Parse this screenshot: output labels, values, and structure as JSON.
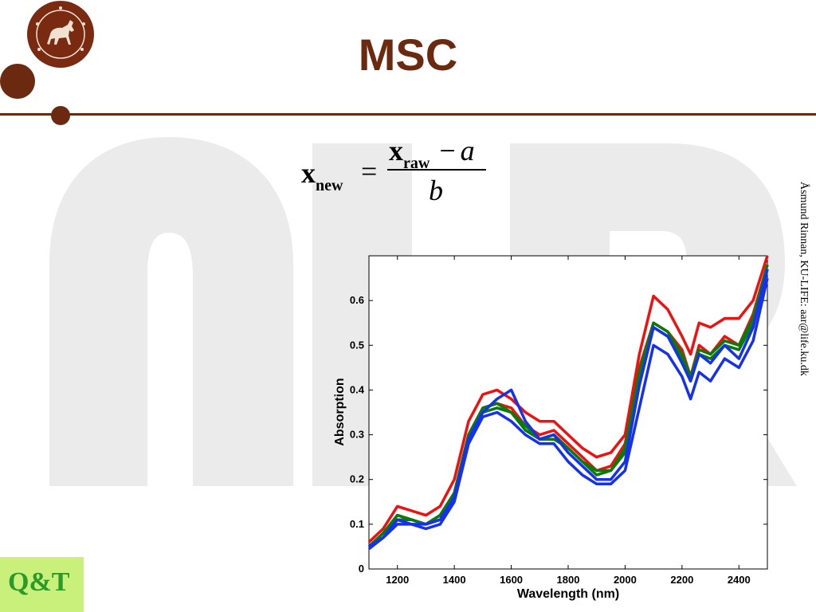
{
  "slide": {
    "title": "MSC",
    "credit": "Åsmund Rinnan, KU-LIFE: aar@life.ku.dk",
    "background_letters": "nIR",
    "formula": {
      "lhs": "x",
      "lhs_sub": "new",
      "equals": "=",
      "num_var": "x",
      "num_sub": "raw",
      "minus": "−",
      "a": "a",
      "denominator": "b"
    },
    "logo_bottom": "Q&T",
    "colors": {
      "brand": "#6b2a10",
      "logo_bg": "#c9f07a",
      "logo_text": "#2a9a2a"
    }
  },
  "chart_data": {
    "type": "line",
    "title": "",
    "xlabel": "Wavelength (nm)",
    "ylabel": "Absorption",
    "xlim": [
      1100,
      2500
    ],
    "ylim": [
      0,
      0.7
    ],
    "x_ticks": [
      1200,
      1400,
      1600,
      1800,
      2000,
      2200,
      2400
    ],
    "y_ticks": [
      0,
      0.1,
      0.2,
      0.3,
      0.4,
      0.5,
      0.6
    ],
    "y_tick_labels": [
      "0",
      "0.1",
      "0.2",
      "0.3",
      "0.4",
      "0.5",
      "0.6"
    ],
    "grid": false,
    "x": [
      1100,
      1150,
      1200,
      1250,
      1300,
      1350,
      1400,
      1450,
      1500,
      1550,
      1600,
      1650,
      1700,
      1750,
      1800,
      1850,
      1900,
      1950,
      2000,
      2050,
      2100,
      2150,
      2200,
      2230,
      2260,
      2300,
      2350,
      2400,
      2450,
      2500
    ],
    "series": [
      {
        "color": "#ee1111",
        "values": [
          0.06,
          0.09,
          0.14,
          0.13,
          0.12,
          0.14,
          0.2,
          0.33,
          0.39,
          0.4,
          0.38,
          0.35,
          0.33,
          0.33,
          0.3,
          0.27,
          0.25,
          0.26,
          0.3,
          0.48,
          0.61,
          0.58,
          0.52,
          0.48,
          0.55,
          0.54,
          0.56,
          0.56,
          0.6,
          0.7
        ]
      },
      {
        "color": "#ee1111",
        "values": [
          0.05,
          0.08,
          0.12,
          0.11,
          0.1,
          0.12,
          0.17,
          0.3,
          0.36,
          0.37,
          0.36,
          0.32,
          0.3,
          0.31,
          0.28,
          0.25,
          0.22,
          0.23,
          0.28,
          0.45,
          0.55,
          0.53,
          0.49,
          0.43,
          0.5,
          0.48,
          0.52,
          0.5,
          0.57,
          0.68
        ]
      },
      {
        "color": "#0a7a0a",
        "values": [
          0.05,
          0.08,
          0.12,
          0.11,
          0.1,
          0.12,
          0.17,
          0.3,
          0.36,
          0.37,
          0.35,
          0.32,
          0.29,
          0.3,
          0.27,
          0.24,
          0.22,
          0.22,
          0.27,
          0.44,
          0.55,
          0.53,
          0.48,
          0.43,
          0.49,
          0.48,
          0.51,
          0.5,
          0.56,
          0.68
        ]
      },
      {
        "color": "#0a7a0a",
        "values": [
          0.05,
          0.08,
          0.11,
          0.11,
          0.1,
          0.11,
          0.16,
          0.29,
          0.35,
          0.36,
          0.35,
          0.31,
          0.29,
          0.29,
          0.27,
          0.24,
          0.21,
          0.22,
          0.26,
          0.43,
          0.54,
          0.52,
          0.47,
          0.42,
          0.48,
          0.47,
          0.5,
          0.49,
          0.55,
          0.67
        ]
      },
      {
        "color": "#1530ee",
        "values": [
          0.05,
          0.07,
          0.11,
          0.1,
          0.1,
          0.11,
          0.16,
          0.29,
          0.35,
          0.38,
          0.4,
          0.33,
          0.29,
          0.3,
          0.26,
          0.23,
          0.2,
          0.2,
          0.24,
          0.41,
          0.54,
          0.52,
          0.46,
          0.42,
          0.48,
          0.46,
          0.5,
          0.47,
          0.54,
          0.67
        ]
      },
      {
        "color": "#1530ee",
        "values": [
          0.045,
          0.07,
          0.1,
          0.1,
          0.09,
          0.1,
          0.15,
          0.28,
          0.34,
          0.35,
          0.33,
          0.3,
          0.28,
          0.28,
          0.24,
          0.21,
          0.19,
          0.19,
          0.22,
          0.36,
          0.5,
          0.48,
          0.43,
          0.38,
          0.44,
          0.42,
          0.47,
          0.45,
          0.51,
          0.65
        ]
      }
    ]
  }
}
